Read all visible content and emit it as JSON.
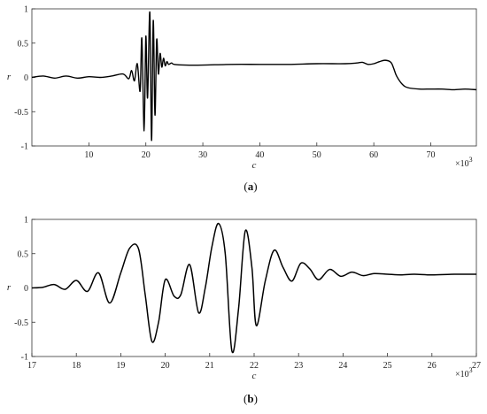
{
  "chart_data": [
    {
      "id": "a",
      "type": "line",
      "caption_letter": "a",
      "xlabel": "c",
      "ylabel": "r",
      "xlim": [
        0,
        78000
      ],
      "ylim": [
        -1,
        1
      ],
      "x_ticks": [
        10000,
        20000,
        30000,
        40000,
        50000,
        60000,
        70000
      ],
      "x_tick_labels": [
        "10",
        "20",
        "30",
        "40",
        "50",
        "60",
        "70"
      ],
      "y_ticks": [
        -1,
        -0.5,
        0,
        0.5,
        1
      ],
      "y_tick_labels": [
        "-1",
        "-0.5",
        "0",
        "0.5",
        "1"
      ],
      "x_multiplier_base": "×10",
      "x_multiplier_exp": "3",
      "grid": false,
      "series": [
        {
          "x": [
            0,
            2000,
            4000,
            6000,
            8000,
            10000,
            12000,
            14000,
            16000,
            17000,
            17500,
            18000,
            18500,
            19000,
            19300,
            19700,
            20000,
            20300,
            20700,
            21000,
            21300,
            21600,
            21900,
            22200,
            22500,
            22800,
            23100,
            23400,
            23700,
            24000,
            24500,
            25000,
            27000,
            30000,
            35000,
            40000,
            45000,
            50000,
            55000,
            57000,
            58000,
            59000,
            60000,
            61000,
            62000,
            63000,
            63500,
            64000,
            65000,
            66000,
            68000,
            70000,
            72000,
            74000,
            76000,
            78000
          ],
          "y": [
            0.0,
            0.02,
            -0.01,
            0.02,
            -0.01,
            0.01,
            0.0,
            0.02,
            0.05,
            -0.02,
            0.1,
            -0.05,
            0.2,
            -0.2,
            0.57,
            -0.78,
            0.6,
            -0.3,
            0.95,
            -0.92,
            0.83,
            -0.55,
            0.55,
            0.05,
            0.35,
            0.15,
            0.28,
            0.17,
            0.23,
            0.19,
            0.21,
            0.19,
            0.18,
            0.18,
            0.19,
            0.19,
            0.19,
            0.2,
            0.2,
            0.21,
            0.22,
            0.19,
            0.2,
            0.23,
            0.25,
            0.22,
            0.13,
            0.02,
            -0.1,
            -0.15,
            -0.17,
            -0.17,
            -0.17,
            -0.18,
            -0.17,
            -0.18
          ]
        }
      ]
    },
    {
      "id": "b",
      "type": "line",
      "caption_letter": "b",
      "xlabel": "c",
      "ylabel": "r",
      "xlim": [
        17000,
        27000
      ],
      "ylim": [
        -1,
        1
      ],
      "x_ticks": [
        17000,
        18000,
        19000,
        20000,
        21000,
        22000,
        23000,
        24000,
        25000,
        26000,
        27000
      ],
      "x_tick_labels": [
        "17",
        "18",
        "19",
        "20",
        "21",
        "22",
        "23",
        "24",
        "25",
        "26",
        "27"
      ],
      "y_ticks": [
        -1,
        -0.5,
        0,
        0.5,
        1
      ],
      "y_tick_labels": [
        "-1",
        "-0.5",
        "0",
        "0.5",
        "1"
      ],
      "x_multiplier_base": "×10",
      "x_multiplier_exp": "3",
      "grid": false,
      "series": [
        {
          "x": [
            17000,
            17250,
            17500,
            17750,
            18000,
            18250,
            18500,
            18750,
            19000,
            19200,
            19400,
            19550,
            19700,
            19850,
            20000,
            20200,
            20350,
            20550,
            20750,
            20900,
            21050,
            21200,
            21350,
            21500,
            21650,
            21800,
            21950,
            22050,
            22250,
            22450,
            22650,
            22850,
            23050,
            23250,
            23450,
            23700,
            23950,
            24200,
            24450,
            24700,
            25000,
            25300,
            25600,
            26000,
            26500,
            27000
          ],
          "y": [
            0.0,
            0.01,
            0.05,
            -0.02,
            0.11,
            -0.05,
            0.22,
            -0.22,
            0.22,
            0.58,
            0.57,
            -0.1,
            -0.78,
            -0.5,
            0.12,
            -0.12,
            -0.1,
            0.34,
            -0.36,
            0.0,
            0.6,
            0.94,
            0.5,
            -0.92,
            -0.3,
            0.83,
            0.3,
            -0.55,
            0.1,
            0.55,
            0.3,
            0.1,
            0.36,
            0.28,
            0.12,
            0.27,
            0.17,
            0.23,
            0.18,
            0.21,
            0.2,
            0.19,
            0.2,
            0.19,
            0.2,
            0.2
          ]
        }
      ]
    }
  ]
}
